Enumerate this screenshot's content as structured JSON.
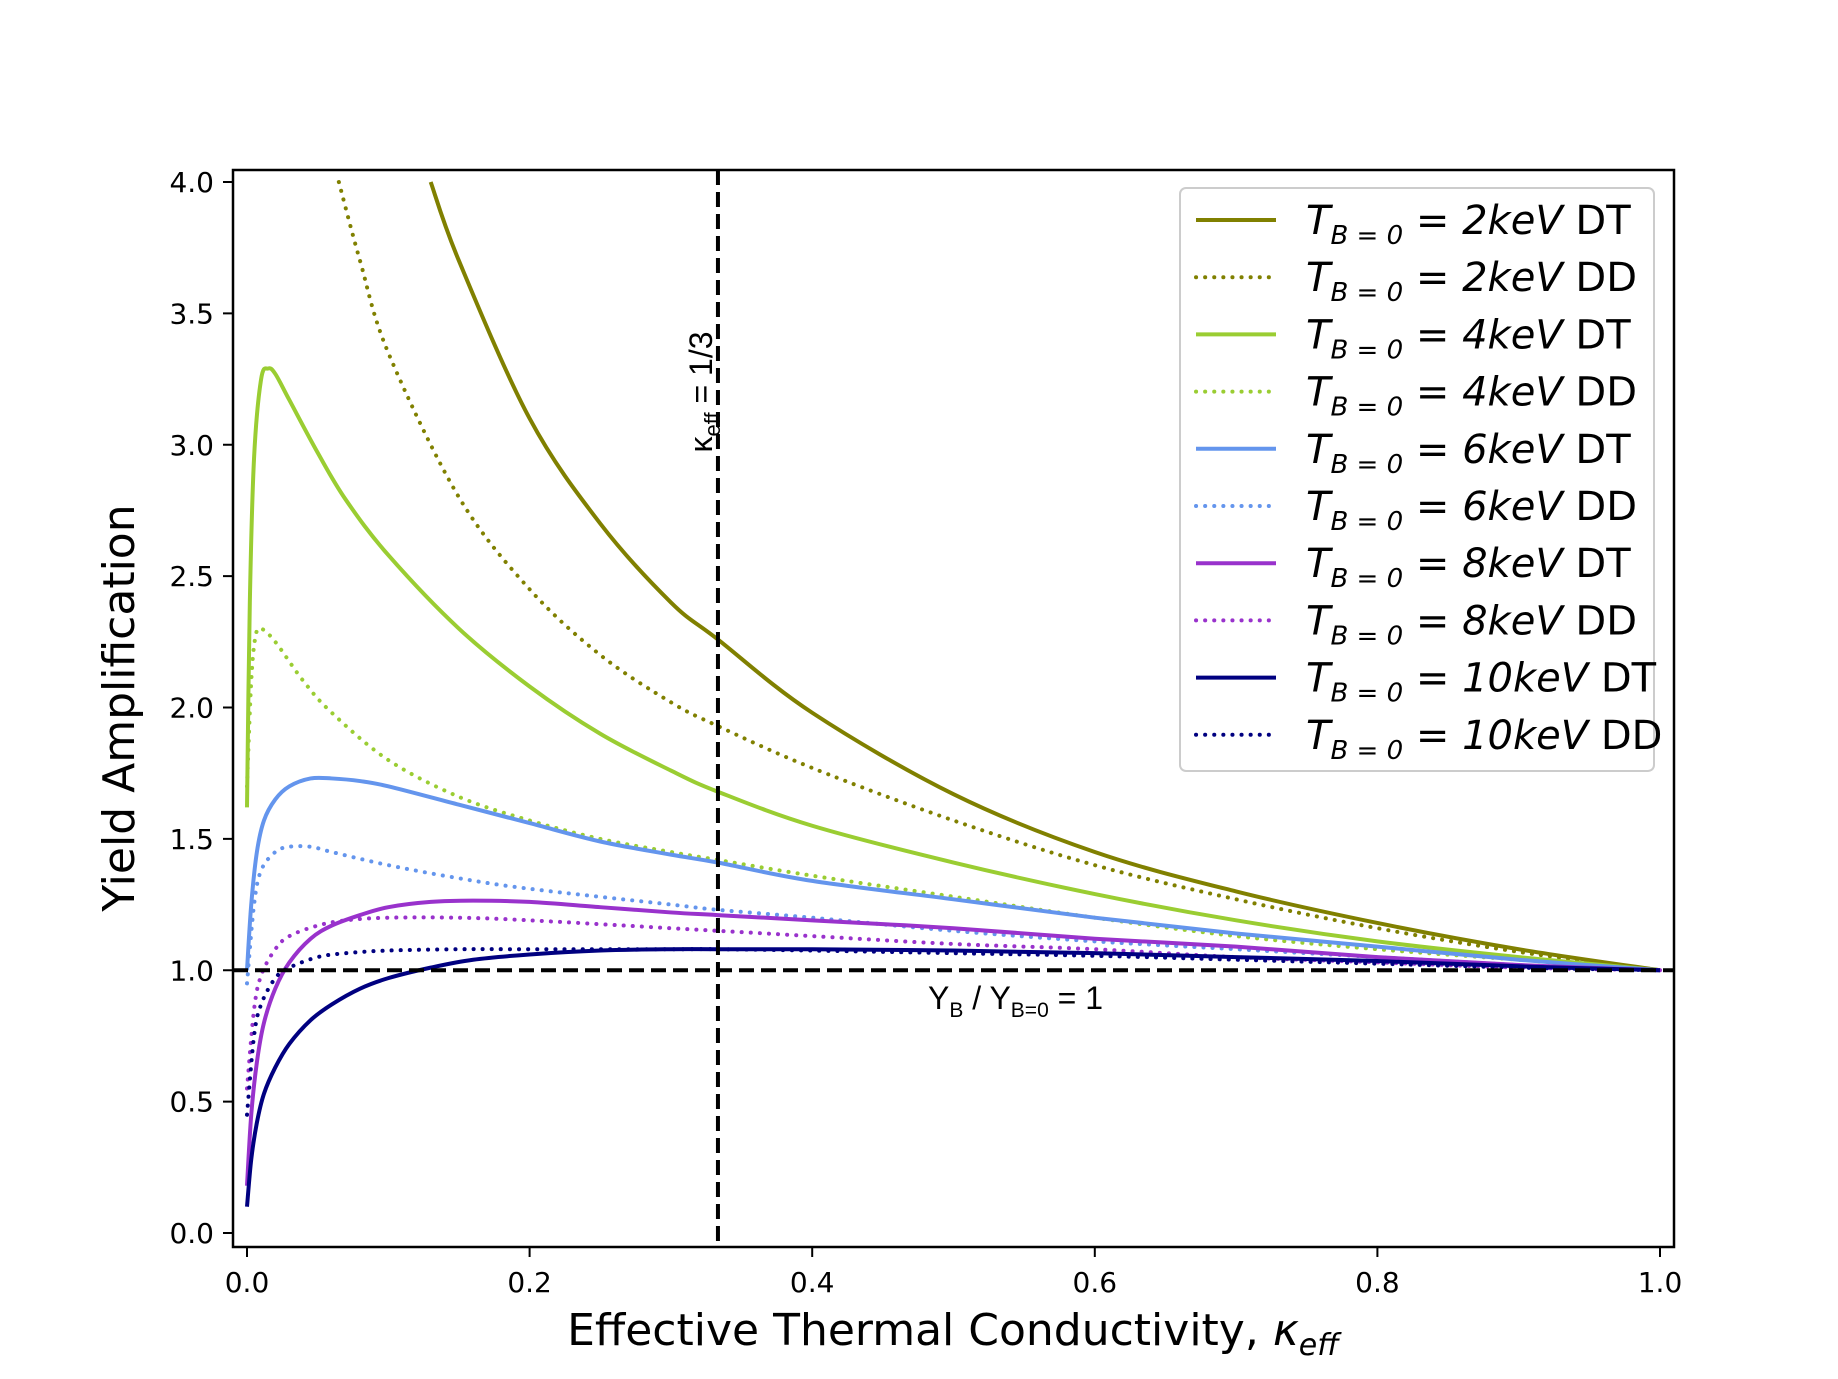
{
  "chart_data": {
    "type": "line",
    "title": "",
    "xlabel": "Effective Thermal Conductivity, ",
    "xlabel_symbol": "κ",
    "xlabel_sub": "eff",
    "ylabel": "Yield Amplification",
    "xlim": [
      0.0,
      1.0
    ],
    "ylim": [
      0.0,
      4.0
    ],
    "xticks": [
      0.0,
      0.2,
      0.4,
      0.6,
      0.8,
      1.0
    ],
    "xtick_labels": [
      "0.0",
      "0.2",
      "0.4",
      "0.6",
      "0.8",
      "1.0"
    ],
    "yticks": [
      0.0,
      0.5,
      1.0,
      1.5,
      2.0,
      2.5,
      3.0,
      3.5,
      4.0
    ],
    "ytick_labels": [
      "0.0",
      "0.5",
      "1.0",
      "1.5",
      "2.0",
      "2.5",
      "3.0",
      "3.5",
      "4.0"
    ],
    "grid": false,
    "legend_position": "top-right",
    "series": [
      {
        "name": "2keV DT",
        "temp": "2keV",
        "fuel": "DT",
        "style": "solid",
        "color": "#808000",
        "x": [
          0.13,
          0.15,
          0.2,
          0.25,
          0.3,
          0.333,
          0.4,
          0.5,
          0.6,
          0.7,
          0.8,
          0.9,
          1.0
        ],
        "y": [
          4.0,
          3.7,
          3.1,
          2.7,
          2.4,
          2.26,
          1.98,
          1.67,
          1.45,
          1.3,
          1.18,
          1.08,
          1.0
        ]
      },
      {
        "name": "2keV DD",
        "temp": "2keV",
        "fuel": "DD",
        "style": "dotted",
        "color": "#808000",
        "x": [
          0.065,
          0.08,
          0.1,
          0.15,
          0.2,
          0.25,
          0.3,
          0.333,
          0.4,
          0.5,
          0.6,
          0.7,
          0.8,
          0.9,
          1.0
        ],
        "y": [
          4.0,
          3.7,
          3.35,
          2.8,
          2.45,
          2.2,
          2.02,
          1.93,
          1.77,
          1.57,
          1.4,
          1.27,
          1.16,
          1.07,
          1.0
        ]
      },
      {
        "name": "4keV DT",
        "temp": "4keV",
        "fuel": "DT",
        "style": "solid",
        "color": "#9acd32",
        "x": [
          0.0,
          0.002,
          0.005,
          0.01,
          0.015,
          0.02,
          0.03,
          0.05,
          0.07,
          0.1,
          0.15,
          0.2,
          0.25,
          0.3,
          0.333,
          0.4,
          0.5,
          0.6,
          0.7,
          0.8,
          0.9,
          1.0
        ],
        "y": [
          1.62,
          2.4,
          2.95,
          3.25,
          3.29,
          3.27,
          3.17,
          2.97,
          2.79,
          2.58,
          2.3,
          2.08,
          1.9,
          1.76,
          1.68,
          1.55,
          1.41,
          1.29,
          1.19,
          1.11,
          1.05,
          1.0
        ],
        "start_from_point": true
      },
      {
        "name": "4keV DD",
        "temp": "4keV",
        "fuel": "DD",
        "style": "dotted",
        "color": "#9acd32",
        "x": [
          0.0,
          0.003,
          0.006,
          0.01,
          0.02,
          0.04,
          0.06,
          0.1,
          0.15,
          0.2,
          0.25,
          0.3,
          0.333,
          0.4,
          0.5,
          0.6,
          0.7,
          0.8,
          0.9,
          1.0
        ],
        "y": [
          1.7,
          2.1,
          2.27,
          2.3,
          2.25,
          2.1,
          1.98,
          1.8,
          1.66,
          1.57,
          1.5,
          1.45,
          1.42,
          1.36,
          1.28,
          1.2,
          1.13,
          1.08,
          1.04,
          1.0
        ]
      },
      {
        "name": "6keV DT",
        "temp": "6keV",
        "fuel": "DT",
        "style": "solid",
        "color": "#6495ed",
        "x": [
          0.0,
          0.003,
          0.007,
          0.012,
          0.02,
          0.03,
          0.045,
          0.06,
          0.08,
          0.1,
          0.15,
          0.2,
          0.25,
          0.3,
          0.333,
          0.4,
          0.5,
          0.6,
          0.7,
          0.8,
          0.9,
          1.0
        ],
        "y": [
          1.0,
          1.25,
          1.45,
          1.57,
          1.65,
          1.7,
          1.73,
          1.73,
          1.72,
          1.7,
          1.63,
          1.56,
          1.49,
          1.44,
          1.41,
          1.34,
          1.27,
          1.2,
          1.14,
          1.09,
          1.04,
          1.0
        ]
      },
      {
        "name": "6keV DD",
        "temp": "6keV",
        "fuel": "DD",
        "style": "dotted",
        "color": "#6495ed",
        "x": [
          0.0,
          0.005,
          0.01,
          0.02,
          0.03,
          0.045,
          0.06,
          0.1,
          0.15,
          0.2,
          0.3,
          0.333,
          0.4,
          0.5,
          0.6,
          0.7,
          0.8,
          0.9,
          1.0
        ],
        "y": [
          0.95,
          1.25,
          1.38,
          1.45,
          1.47,
          1.47,
          1.45,
          1.4,
          1.35,
          1.31,
          1.25,
          1.23,
          1.2,
          1.15,
          1.11,
          1.08,
          1.05,
          1.02,
          1.0
        ]
      },
      {
        "name": "8keV DT",
        "temp": "8keV",
        "fuel": "DT",
        "style": "solid",
        "color": "#9932cc",
        "x": [
          0.0,
          0.003,
          0.007,
          0.012,
          0.02,
          0.03,
          0.045,
          0.06,
          0.08,
          0.1,
          0.13,
          0.16,
          0.2,
          0.25,
          0.3,
          0.333,
          0.4,
          0.5,
          0.6,
          0.7,
          0.8,
          0.9,
          1.0
        ],
        "y": [
          0.18,
          0.45,
          0.65,
          0.8,
          0.93,
          1.03,
          1.12,
          1.17,
          1.21,
          1.24,
          1.26,
          1.265,
          1.26,
          1.24,
          1.22,
          1.21,
          1.19,
          1.16,
          1.12,
          1.09,
          1.05,
          1.02,
          1.0
        ]
      },
      {
        "name": "8keV DD",
        "temp": "8keV",
        "fuel": "DD",
        "style": "dotted",
        "color": "#9932cc",
        "x": [
          0.0,
          0.005,
          0.01,
          0.02,
          0.03,
          0.05,
          0.07,
          0.1,
          0.15,
          0.2,
          0.3,
          0.333,
          0.4,
          0.5,
          0.6,
          0.7,
          0.8,
          0.9,
          1.0
        ],
        "y": [
          0.55,
          0.85,
          0.98,
          1.08,
          1.13,
          1.17,
          1.19,
          1.2,
          1.2,
          1.19,
          1.16,
          1.15,
          1.13,
          1.1,
          1.08,
          1.05,
          1.03,
          1.01,
          1.0
        ]
      },
      {
        "name": "10keV DT",
        "temp": "10keV",
        "fuel": "DT",
        "style": "solid",
        "color": "#000080",
        "x": [
          0.0,
          0.003,
          0.007,
          0.012,
          0.02,
          0.03,
          0.045,
          0.06,
          0.08,
          0.1,
          0.13,
          0.16,
          0.2,
          0.25,
          0.3,
          0.333,
          0.4,
          0.5,
          0.6,
          0.7,
          0.8,
          0.9,
          1.0
        ],
        "y": [
          0.1,
          0.28,
          0.42,
          0.53,
          0.63,
          0.72,
          0.81,
          0.87,
          0.93,
          0.97,
          1.01,
          1.04,
          1.06,
          1.075,
          1.08,
          1.08,
          1.08,
          1.075,
          1.065,
          1.05,
          1.035,
          1.015,
          1.0
        ]
      },
      {
        "name": "10keV DD",
        "temp": "10keV",
        "fuel": "DD",
        "style": "dotted",
        "color": "#000080",
        "x": [
          0.0,
          0.005,
          0.01,
          0.02,
          0.03,
          0.05,
          0.07,
          0.1,
          0.15,
          0.2,
          0.3,
          0.333,
          0.4,
          0.5,
          0.6,
          0.7,
          0.8,
          0.9,
          1.0
        ],
        "y": [
          0.45,
          0.75,
          0.87,
          0.97,
          1.01,
          1.05,
          1.065,
          1.075,
          1.08,
          1.08,
          1.08,
          1.08,
          1.075,
          1.065,
          1.055,
          1.04,
          1.025,
          1.01,
          1.0
        ]
      }
    ],
    "legend_prefix": "T",
    "legend_subscript": "B = 0",
    "legend_equals": " = ",
    "reference_lines": [
      {
        "orientation": "vertical",
        "value": 0.3333,
        "label_symbol": "κ",
        "label_sub": "eff",
        "label_rest": " = 1/3"
      },
      {
        "orientation": "horizontal",
        "value": 1.0,
        "label_main": "Y",
        "label_sub1": "B",
        "label_mid": " / Y",
        "label_sub2": "B=0",
        "label_rest": " = 1"
      }
    ]
  }
}
